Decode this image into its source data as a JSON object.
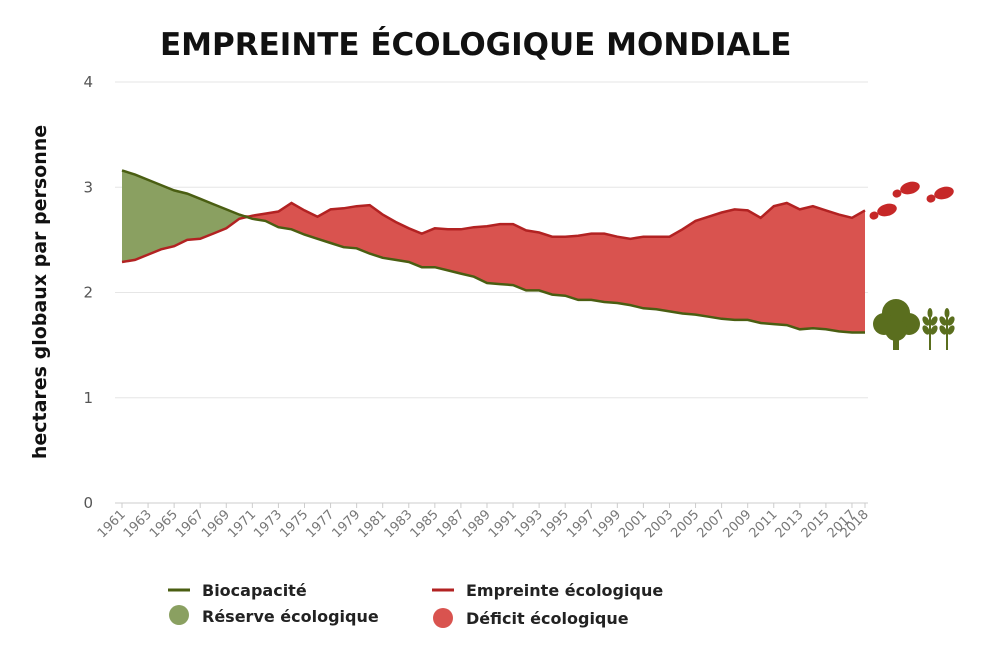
{
  "chart_data": {
    "type": "area",
    "title": "EMPREINTE ÉCOLOGIQUE MONDIALE",
    "xlabel": "",
    "ylabel": "hectares globaux par personne",
    "ylim": [
      0,
      4
    ],
    "yticks": [
      "0",
      "1",
      "2",
      "3",
      "4"
    ],
    "xtick_labels": [
      "1961",
      "1963",
      "1965",
      "1967",
      "1969",
      "1971",
      "1973",
      "1975",
      "1977",
      "1979",
      "1981",
      "1983",
      "1985",
      "1987",
      "1989",
      "1991",
      "1993",
      "1995",
      "1997",
      "1999",
      "2001",
      "2003",
      "2005",
      "2007",
      "2009",
      "2011",
      "2013",
      "2015",
      "2017",
      "2018"
    ],
    "x": [
      1961,
      1962,
      1963,
      1964,
      1965,
      1966,
      1967,
      1968,
      1969,
      1970,
      1971,
      1972,
      1973,
      1974,
      1975,
      1976,
      1977,
      1978,
      1979,
      1980,
      1981,
      1982,
      1983,
      1984,
      1985,
      1986,
      1987,
      1988,
      1989,
      1990,
      1991,
      1992,
      1993,
      1994,
      1995,
      1996,
      1997,
      1998,
      1999,
      2000,
      2001,
      2002,
      2003,
      2004,
      2005,
      2006,
      2007,
      2008,
      2009,
      2010,
      2011,
      2012,
      2013,
      2014,
      2015,
      2016,
      2017,
      2018
    ],
    "series": [
      {
        "name": "Biocapacité",
        "color": "#4a5e12",
        "values": [
          3.16,
          3.12,
          3.07,
          3.02,
          2.97,
          2.94,
          2.89,
          2.84,
          2.79,
          2.74,
          2.7,
          2.68,
          2.62,
          2.6,
          2.55,
          2.51,
          2.47,
          2.43,
          2.42,
          2.37,
          2.33,
          2.31,
          2.29,
          2.24,
          2.24,
          2.21,
          2.18,
          2.15,
          2.09,
          2.08,
          2.07,
          2.02,
          2.02,
          1.98,
          1.97,
          1.93,
          1.93,
          1.91,
          1.9,
          1.88,
          1.85,
          1.84,
          1.82,
          1.8,
          1.79,
          1.77,
          1.75,
          1.74,
          1.74,
          1.71,
          1.7,
          1.69,
          1.65,
          1.66,
          1.65,
          1.63,
          1.62,
          1.62
        ]
      },
      {
        "name": "Empreinte écologique",
        "color": "#b22222",
        "values": [
          2.29,
          2.31,
          2.36,
          2.41,
          2.44,
          2.5,
          2.51,
          2.56,
          2.61,
          2.7,
          2.73,
          2.75,
          2.77,
          2.85,
          2.78,
          2.72,
          2.79,
          2.8,
          2.82,
          2.83,
          2.74,
          2.67,
          2.61,
          2.56,
          2.61,
          2.6,
          2.6,
          2.62,
          2.63,
          2.65,
          2.65,
          2.59,
          2.57,
          2.53,
          2.53,
          2.54,
          2.56,
          2.56,
          2.53,
          2.51,
          2.53,
          2.53,
          2.53,
          2.6,
          2.68,
          2.72,
          2.76,
          2.79,
          2.78,
          2.71,
          2.82,
          2.85,
          2.79,
          2.82,
          2.78,
          2.74,
          2.71,
          2.78
        ]
      }
    ],
    "areas": [
      {
        "name": "Réserve écologique",
        "color": "#8aa061",
        "meaning": "biocapacité > empreinte"
      },
      {
        "name": "Déficit écologique",
        "color": "#d9534f",
        "meaning": "empreinte > biocapacité"
      }
    ],
    "legend": {
      "biocapacite": "Biocapacité",
      "empreinte": "Empreinte écologique",
      "reserve": "Réserve écologique",
      "deficit": "Déficit écologique"
    },
    "legend_position": "bottom",
    "grid": true
  },
  "icons": {
    "footprints": "footprints-icon",
    "tree": "tree-icon",
    "wheat": "wheat-icon"
  },
  "colors": {
    "biocapacite_line": "#4a5e12",
    "empreinte_line": "#b22222",
    "reserve_fill": "#8aa061",
    "deficit_fill": "#d9534f",
    "footprint_icon": "#c62828",
    "tree_icon": "#5a6e1e"
  }
}
